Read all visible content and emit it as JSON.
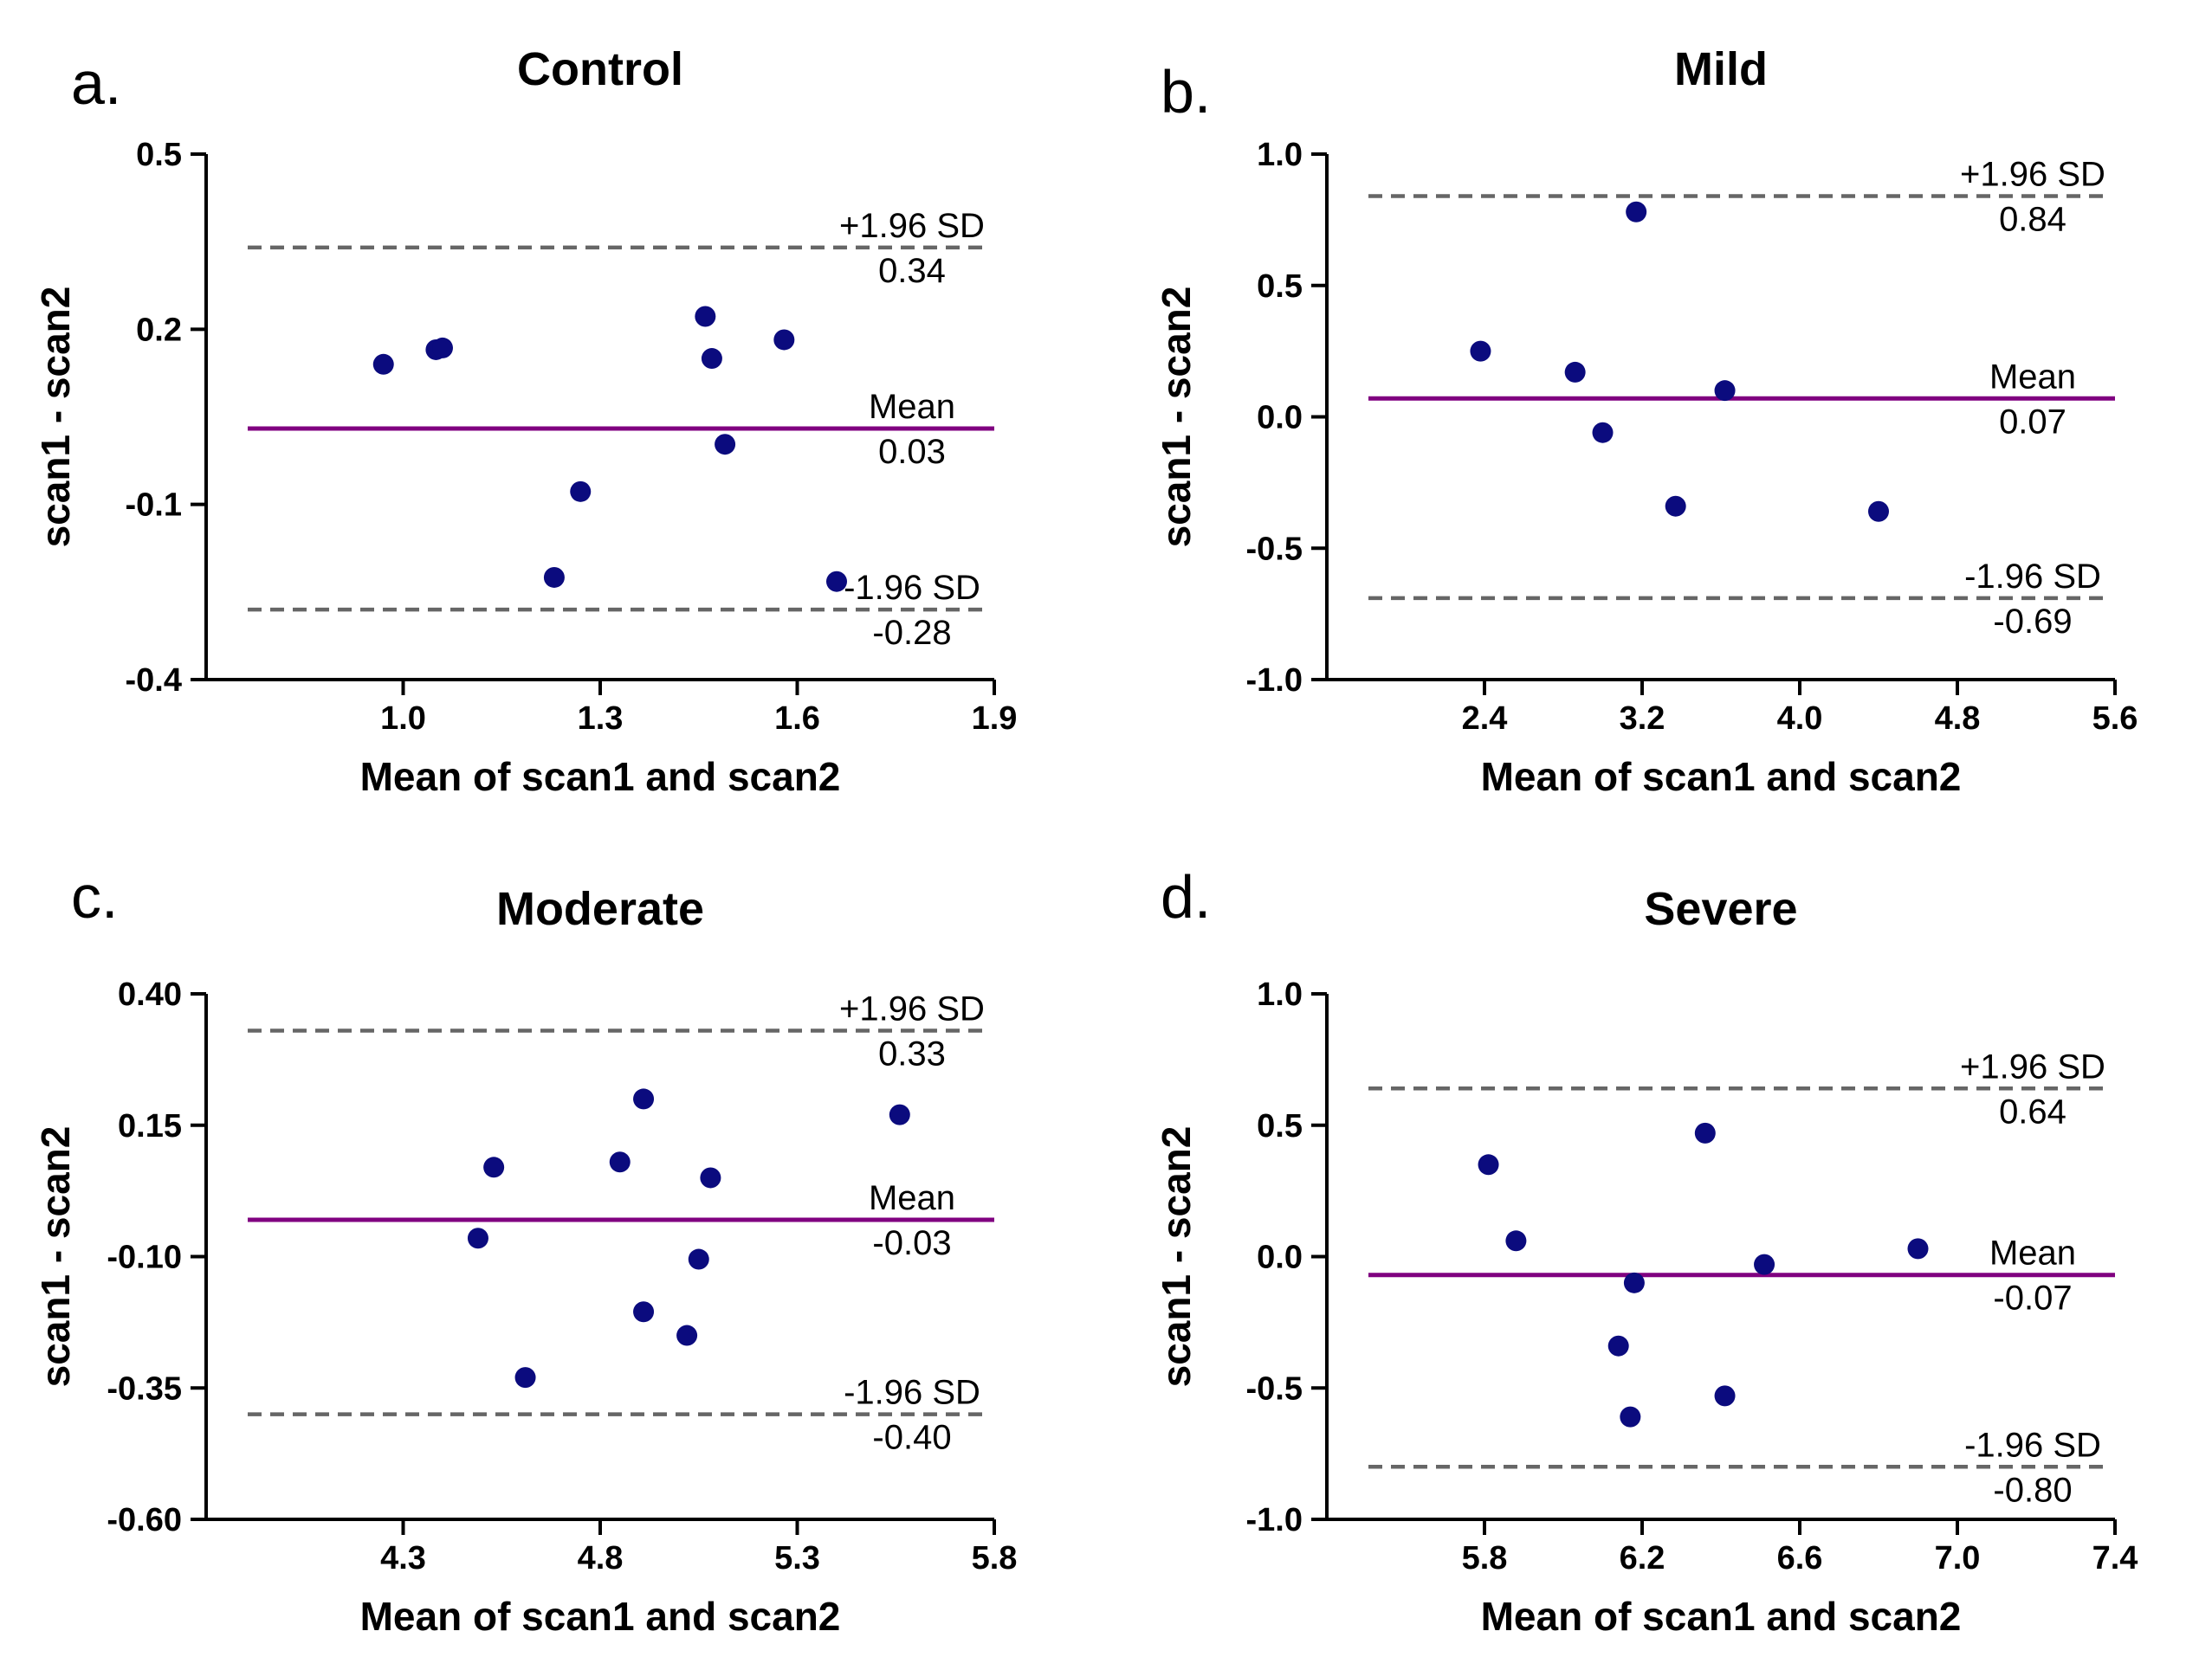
{
  "chart_data": [
    {
      "type": "scatter",
      "panel": "a.",
      "title": "Control",
      "xlabel": "Mean of scan1 and scan2",
      "ylabel": "scan1 - scan2",
      "xlim": [
        0.7,
        1.9
      ],
      "ylim": [
        -0.4,
        0.5
      ],
      "xticks": [
        1.0,
        1.3,
        1.6,
        1.9
      ],
      "xtick_labels": [
        "1.0",
        "1.3",
        "1.6",
        "1.9"
      ],
      "yticks": [
        0.5,
        0.2,
        -0.1,
        -0.4
      ],
      "ytick_labels": [
        "0.5",
        "0.2",
        "-0.1",
        "-0.4"
      ],
      "points": [
        {
          "x": 0.97,
          "y": 0.14
        },
        {
          "x": 1.05,
          "y": 0.165
        },
        {
          "x": 1.06,
          "y": 0.168
        },
        {
          "x": 1.46,
          "y": 0.222
        },
        {
          "x": 1.47,
          "y": 0.15
        },
        {
          "x": 1.58,
          "y": 0.182
        },
        {
          "x": 1.49,
          "y": 0.003
        },
        {
          "x": 1.27,
          "y": -0.078
        },
        {
          "x": 1.23,
          "y": -0.225
        },
        {
          "x": 1.66,
          "y": -0.232
        }
      ],
      "mean": {
        "label": "Mean",
        "value": 0.03,
        "value_label": "0.03"
      },
      "upper_loa": {
        "label": "+1.96 SD",
        "value": 0.34,
        "value_label": "0.34"
      },
      "lower_loa": {
        "label": "-1.96 SD",
        "value": -0.28,
        "value_label": "-0.28"
      }
    },
    {
      "type": "scatter",
      "panel": "b.",
      "title": "Mild",
      "xlabel": "Mean of scan1 and scan2",
      "ylabel": "scan1 - scan2",
      "xlim": [
        1.6,
        5.6
      ],
      "ylim": [
        -1.0,
        1.0
      ],
      "xticks": [
        2.4,
        3.2,
        4.0,
        4.8,
        5.6
      ],
      "xtick_labels": [
        "2.4",
        "3.2",
        "4.0",
        "4.8",
        "5.6"
      ],
      "yticks": [
        1.0,
        0.5,
        0.0,
        -0.5,
        -1.0
      ],
      "ytick_labels": [
        "1.0",
        "0.5",
        "0.0",
        "-0.5",
        "-1.0"
      ],
      "points": [
        {
          "x": 2.38,
          "y": 0.25
        },
        {
          "x": 2.86,
          "y": 0.17
        },
        {
          "x": 3.17,
          "y": 0.78
        },
        {
          "x": 3.62,
          "y": 0.1
        },
        {
          "x": 3.0,
          "y": -0.06
        },
        {
          "x": 3.37,
          "y": -0.34
        },
        {
          "x": 4.4,
          "y": -0.36
        }
      ],
      "mean": {
        "label": "Mean",
        "value": 0.07,
        "value_label": "0.07"
      },
      "upper_loa": {
        "label": "+1.96 SD",
        "value": 0.84,
        "value_label": "0.84"
      },
      "lower_loa": {
        "label": "-1.96 SD",
        "value": -0.69,
        "value_label": "-0.69"
      }
    },
    {
      "type": "scatter",
      "panel": "c.",
      "title": "Moderate",
      "xlabel": "Mean of scan1 and scan2",
      "ylabel": "scan1 - scan2",
      "xlim": [
        3.8,
        5.8
      ],
      "ylim": [
        -0.6,
        0.4
      ],
      "xticks": [
        4.3,
        4.8,
        5.3,
        5.8
      ],
      "xtick_labels": [
        "4.3",
        "4.8",
        "5.3",
        "5.8"
      ],
      "yticks": [
        0.4,
        0.15,
        -0.1,
        -0.35,
        -0.6
      ],
      "ytick_labels": [
        "0.40",
        "0.15",
        "-0.10",
        "-0.35",
        "-0.60"
      ],
      "points": [
        {
          "x": 4.53,
          "y": 0.07
        },
        {
          "x": 4.91,
          "y": 0.2
        },
        {
          "x": 4.85,
          "y": 0.08
        },
        {
          "x": 5.08,
          "y": 0.05
        },
        {
          "x": 5.56,
          "y": 0.17
        },
        {
          "x": 4.49,
          "y": -0.065
        },
        {
          "x": 5.05,
          "y": -0.105
        },
        {
          "x": 4.91,
          "y": -0.205
        },
        {
          "x": 5.02,
          "y": -0.25
        },
        {
          "x": 4.61,
          "y": -0.33
        }
      ],
      "mean": {
        "label": "Mean",
        "value": -0.03,
        "value_label": "-0.03"
      },
      "upper_loa": {
        "label": "+1.96 SD",
        "value": 0.33,
        "value_label": "0.33"
      },
      "lower_loa": {
        "label": "-1.96 SD",
        "value": -0.4,
        "value_label": "-0.40"
      }
    },
    {
      "type": "scatter",
      "panel": "d.",
      "title": "Severe",
      "xlabel": "Mean of scan1 and scan2",
      "ylabel": "scan1 - scan2",
      "xlim": [
        5.4,
        7.4
      ],
      "ylim": [
        -1.0,
        1.0
      ],
      "xticks": [
        5.8,
        6.2,
        6.6,
        7.0,
        7.4
      ],
      "xtick_labels": [
        "5.8",
        "6.2",
        "6.6",
        "7.0",
        "7.4"
      ],
      "yticks": [
        1.0,
        0.5,
        0.0,
        -0.5,
        -1.0
      ],
      "ytick_labels": [
        "1.0",
        "0.5",
        "0.0",
        "-0.5",
        "-1.0"
      ],
      "points": [
        {
          "x": 5.81,
          "y": 0.35
        },
        {
          "x": 5.88,
          "y": 0.06
        },
        {
          "x": 6.36,
          "y": 0.47
        },
        {
          "x": 6.9,
          "y": 0.03
        },
        {
          "x": 6.51,
          "y": -0.03
        },
        {
          "x": 6.18,
          "y": -0.1
        },
        {
          "x": 6.14,
          "y": -0.34
        },
        {
          "x": 6.41,
          "y": -0.53
        },
        {
          "x": 6.17,
          "y": -0.61
        }
      ],
      "mean": {
        "label": "Mean",
        "value": -0.07,
        "value_label": "-0.07"
      },
      "upper_loa": {
        "label": "+1.96 SD",
        "value": 0.64,
        "value_label": "0.64"
      },
      "lower_loa": {
        "label": "-1.96 SD",
        "value": -0.8,
        "value_label": "-0.80"
      }
    }
  ]
}
